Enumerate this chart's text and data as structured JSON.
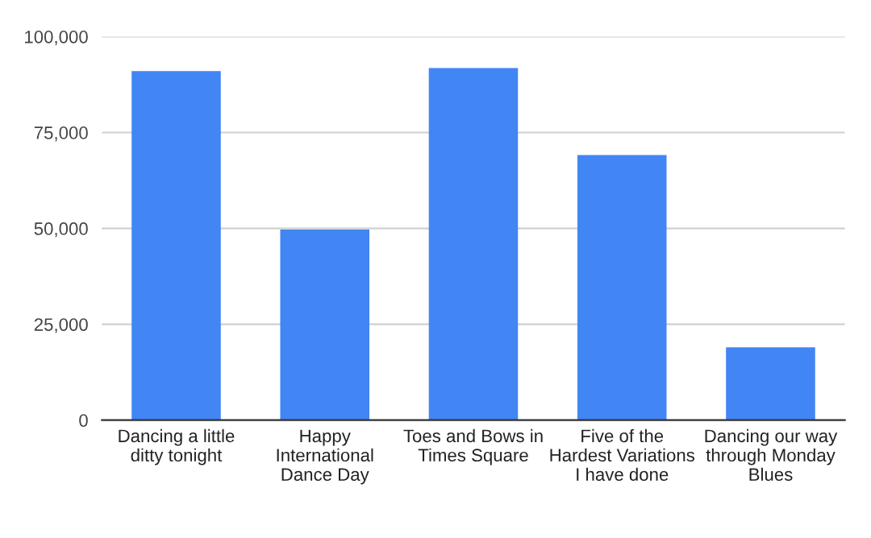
{
  "chart_data": {
    "type": "bar",
    "categories": [
      "Dancing a little ditty tonight",
      "Happy International Dance Day",
      "Toes and Bows in Times Square",
      "Five of the Hardest Variations I have done",
      "Dancing our way through Monday Blues"
    ],
    "values": [
      91000,
      49700,
      91800,
      69100,
      19000
    ],
    "color": "#4285f4",
    "ylim": [
      0,
      100000
    ],
    "yticks": [
      {
        "value": 0,
        "label": "0"
      },
      {
        "value": 25000,
        "label": "25,000"
      },
      {
        "value": 50000,
        "label": "50,000"
      },
      {
        "value": 75000,
        "label": "75,000"
      },
      {
        "value": 100000,
        "label": "100,000"
      }
    ],
    "grid": "y"
  }
}
